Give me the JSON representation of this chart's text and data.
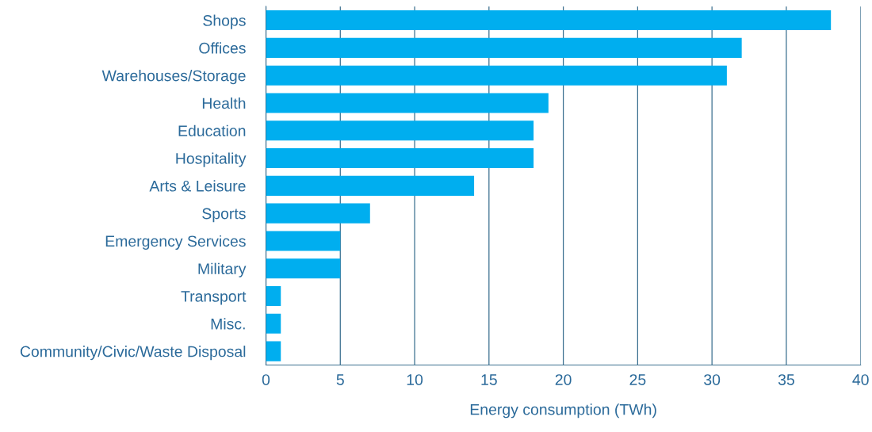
{
  "chart_data": {
    "type": "bar",
    "orientation": "horizontal",
    "xlabel": "Energy consumption (TWh)",
    "categories": [
      "Shops",
      "Offices",
      "Warehouses/Storage",
      "Health",
      "Education",
      "Hospitality",
      "Arts & Leisure",
      "Sports",
      "Emergency Services",
      "Military",
      "Transport",
      "Misc.",
      "Community/Civic/Waste Disposal"
    ],
    "values": [
      38,
      32,
      31,
      19,
      18,
      18,
      14,
      7,
      5,
      5,
      1,
      1,
      1
    ],
    "color": "#00aeef",
    "xlim": [
      0,
      40
    ],
    "xticks": [
      0,
      5,
      10,
      15,
      20,
      25,
      30,
      35,
      40
    ],
    "grid": "x"
  }
}
